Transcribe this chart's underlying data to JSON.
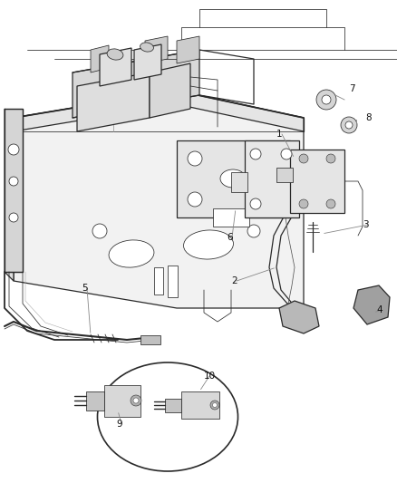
{
  "bg_color": "#ffffff",
  "line_color": "#2a2a2a",
  "gray_fill": "#e8e8e8",
  "light_fill": "#f2f2f2",
  "dark_fill": "#c0c0c0",
  "figsize": [
    4.39,
    5.33
  ],
  "dpi": 100,
  "lw_main": 0.9,
  "lw_thin": 0.55,
  "lw_thick": 1.3,
  "label_fs": 7.5,
  "leader_color": "#888888"
}
